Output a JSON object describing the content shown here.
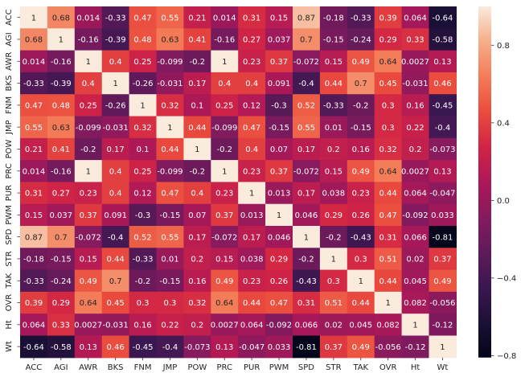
{
  "chart_data": {
    "type": "heatmap",
    "title": "",
    "xlabel": "",
    "ylabel": "",
    "x_labels": [
      "ACC",
      "AGI",
      "AWR",
      "BKS",
      "FNM",
      "JMP",
      "POW",
      "PRC",
      "PUR",
      "PWM",
      "SPD",
      "STR",
      "TAK",
      "OVR",
      "Ht",
      "Wt"
    ],
    "y_labels": [
      "ACC",
      "AGI",
      "AWR",
      "BKS",
      "FNM",
      "JMP",
      "POW",
      "PRC",
      "PUR",
      "PWM",
      "SPD",
      "STR",
      "TAK",
      "OVR",
      "Ht",
      "Wt"
    ],
    "values": [
      [
        1,
        0.68,
        0.014,
        -0.33,
        0.47,
        0.55,
        0.21,
        0.014,
        0.31,
        0.15,
        0.87,
        -0.18,
        -0.33,
        0.39,
        0.064,
        -0.64
      ],
      [
        0.68,
        1,
        -0.16,
        -0.39,
        0.48,
        0.63,
        0.41,
        -0.16,
        0.27,
        0.037,
        0.7,
        -0.15,
        -0.24,
        0.29,
        0.33,
        -0.58
      ],
      [
        0.014,
        -0.16,
        1,
        0.4,
        0.25,
        -0.099,
        -0.2,
        1,
        0.23,
        0.37,
        -0.072,
        0.15,
        0.49,
        0.64,
        0.0027,
        0.13
      ],
      [
        -0.33,
        -0.39,
        0.4,
        1,
        -0.26,
        -0.031,
        0.17,
        0.4,
        0.4,
        0.091,
        -0.4,
        0.44,
        0.7,
        0.45,
        -0.031,
        0.46
      ],
      [
        0.47,
        0.48,
        0.25,
        -0.26,
        1,
        0.32,
        0.1,
        0.25,
        0.12,
        -0.3,
        0.52,
        -0.33,
        -0.2,
        0.3,
        0.16,
        -0.45
      ],
      [
        0.55,
        0.63,
        -0.099,
        -0.031,
        0.32,
        1,
        0.44,
        -0.099,
        0.47,
        -0.15,
        0.55,
        0.01,
        -0.15,
        0.3,
        0.22,
        -0.4
      ],
      [
        0.21,
        0.41,
        -0.2,
        0.17,
        0.1,
        0.44,
        1,
        -0.2,
        0.4,
        0.07,
        0.17,
        0.2,
        0.16,
        0.32,
        0.2,
        -0.073
      ],
      [
        0.014,
        -0.16,
        1,
        0.4,
        0.25,
        -0.099,
        -0.2,
        1,
        0.23,
        0.37,
        -0.072,
        0.15,
        0.49,
        0.64,
        0.0027,
        0.13
      ],
      [
        0.31,
        0.27,
        0.23,
        0.4,
        0.12,
        0.47,
        0.4,
        0.23,
        1,
        0.013,
        0.17,
        0.038,
        0.23,
        0.44,
        0.064,
        -0.047
      ],
      [
        0.15,
        0.037,
        0.37,
        0.091,
        -0.3,
        -0.15,
        0.07,
        0.37,
        0.013,
        1,
        0.046,
        0.29,
        0.26,
        0.47,
        -0.092,
        0.033
      ],
      [
        0.87,
        0.7,
        -0.072,
        -0.4,
        0.52,
        0.55,
        0.17,
        -0.072,
        0.17,
        0.046,
        1,
        -0.2,
        -0.43,
        0.31,
        0.066,
        -0.81
      ],
      [
        -0.18,
        -0.15,
        0.15,
        0.44,
        -0.33,
        0.01,
        0.2,
        0.15,
        0.038,
        0.29,
        -0.2,
        1,
        0.3,
        0.51,
        0.02,
        0.37
      ],
      [
        -0.33,
        -0.24,
        0.49,
        0.7,
        -0.2,
        -0.15,
        0.16,
        0.49,
        0.23,
        0.26,
        -0.43,
        0.3,
        1,
        0.44,
        0.045,
        0.49
      ],
      [
        0.39,
        0.29,
        0.64,
        0.45,
        0.3,
        0.3,
        0.32,
        0.64,
        0.44,
        0.47,
        0.31,
        0.51,
        0.44,
        1,
        0.082,
        -0.056
      ],
      [
        0.064,
        0.33,
        0.0027,
        -0.031,
        0.16,
        0.22,
        0.2,
        0.0027,
        0.064,
        -0.092,
        0.066,
        0.02,
        0.045,
        0.082,
        1,
        -0.12
      ],
      [
        -0.64,
        -0.58,
        0.13,
        0.46,
        -0.45,
        -0.4,
        -0.073,
        0.13,
        -0.047,
        0.033,
        -0.81,
        0.37,
        0.49,
        -0.056,
        -0.12,
        1
      ]
    ],
    "colorbar": {
      "range": [
        -0.81,
        1
      ],
      "ticks": [
        -0.8,
        -0.4,
        0.0,
        0.4,
        0.8
      ],
      "tick_labels": [
        "−0.8",
        "−0.4",
        "0.0",
        "0.4",
        "0.8"
      ],
      "colormap": "rocket"
    },
    "annotations_visible": true,
    "grid": false,
    "legend": "colorbar right"
  }
}
